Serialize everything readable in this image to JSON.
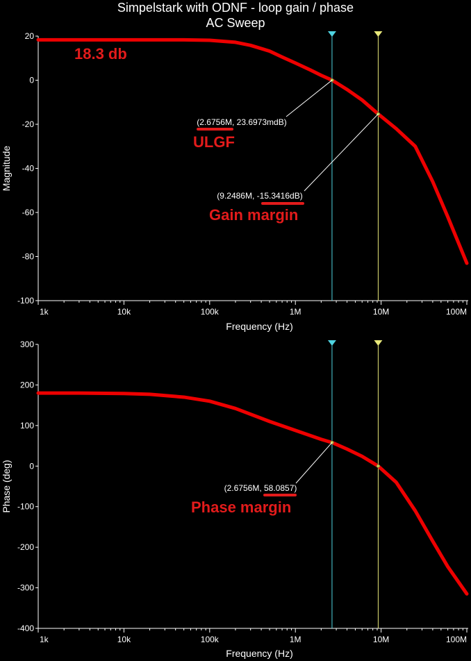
{
  "title_line1": "Simpelstark with ODNF - loop gain / phase",
  "title_line2": "AC Sweep",
  "chart_data": [
    {
      "type": "line",
      "xlabel": "Frequency (Hz)",
      "ylabel": "Magnitude",
      "xscale": "log",
      "xlim": [
        1000,
        100000000
      ],
      "ylim": [
        -100,
        20
      ],
      "x_ticks": [
        {
          "v": 1000,
          "label": "1k"
        },
        {
          "v": 10000,
          "label": "10k"
        },
        {
          "v": 100000,
          "label": "100k"
        },
        {
          "v": 1000000,
          "label": "1M"
        },
        {
          "v": 10000000,
          "label": "10M"
        },
        {
          "v": 100000000,
          "label": "100M"
        }
      ],
      "y_ticks": [
        20,
        0,
        -20,
        -40,
        -60,
        -80,
        -100
      ],
      "series": [
        {
          "color": "#ee0000",
          "x": [
            1000,
            10000,
            50000,
            100000,
            200000,
            300000,
            500000,
            700000,
            1000000,
            1500000,
            2000000,
            2675600,
            4000000,
            6000000,
            9248600,
            15000000,
            25000000,
            40000000,
            60000000,
            100000000
          ],
          "y": [
            18.3,
            18.3,
            18.3,
            18.1,
            17.2,
            15.8,
            13.2,
            10.5,
            7.8,
            4.6,
            2.2,
            0.0237,
            -4.2,
            -9.0,
            -15.34,
            -22.0,
            -30.0,
            -46.0,
            -62.0,
            -83.0
          ]
        }
      ],
      "cursors": [
        {
          "x": 2675600,
          "color": "#4fd3e0"
        },
        {
          "x": 9248600,
          "color": "#e8e87a"
        }
      ],
      "markers": [
        {
          "x": 2675600,
          "y": 0.0237,
          "label": "(2.6756M, 23.6973mdB)"
        },
        {
          "x": 9248600,
          "y": -15.3416,
          "label": "(9.2486M, -15.3416dB)"
        }
      ],
      "annotations": [
        "18.3 db",
        "ULGF",
        "Gain margin"
      ]
    },
    {
      "type": "line",
      "xlabel": "Frequency (Hz)",
      "ylabel": "Phase (deg)",
      "xscale": "log",
      "xlim": [
        1000,
        100000000
      ],
      "ylim": [
        -400,
        300
      ],
      "x_ticks": [
        {
          "v": 1000,
          "label": "1k"
        },
        {
          "v": 10000,
          "label": "10k"
        },
        {
          "v": 100000,
          "label": "100k"
        },
        {
          "v": 1000000,
          "label": "1M"
        },
        {
          "v": 10000000,
          "label": "10M"
        },
        {
          "v": 100000000,
          "label": "100M"
        }
      ],
      "y_ticks": [
        300,
        200,
        100,
        0,
        -100,
        -200,
        -300,
        -400
      ],
      "series": [
        {
          "color": "#ee0000",
          "x": [
            1000,
            3000,
            10000,
            20000,
            50000,
            100000,
            200000,
            500000,
            1000000,
            2000000,
            2675600,
            4000000,
            6000000,
            9248600,
            15000000,
            25000000,
            40000000,
            60000000,
            100000000
          ],
          "y": [
            180,
            180,
            179,
            177,
            170,
            160,
            142,
            110,
            88,
            66,
            58.09,
            42,
            24,
            0,
            -40,
            -110,
            -185,
            -248,
            -315
          ]
        }
      ],
      "cursors": [
        {
          "x": 2675600,
          "color": "#4fd3e0"
        },
        {
          "x": 9248600,
          "color": "#e8e87a"
        }
      ],
      "markers": [
        {
          "x": 2675600,
          "y": 58.0857,
          "label": "(2.6756M, 58.0857)"
        },
        {
          "x": 9248600,
          "y": 0,
          "label": ""
        }
      ],
      "annotations": [
        "Phase margin"
      ]
    }
  ]
}
